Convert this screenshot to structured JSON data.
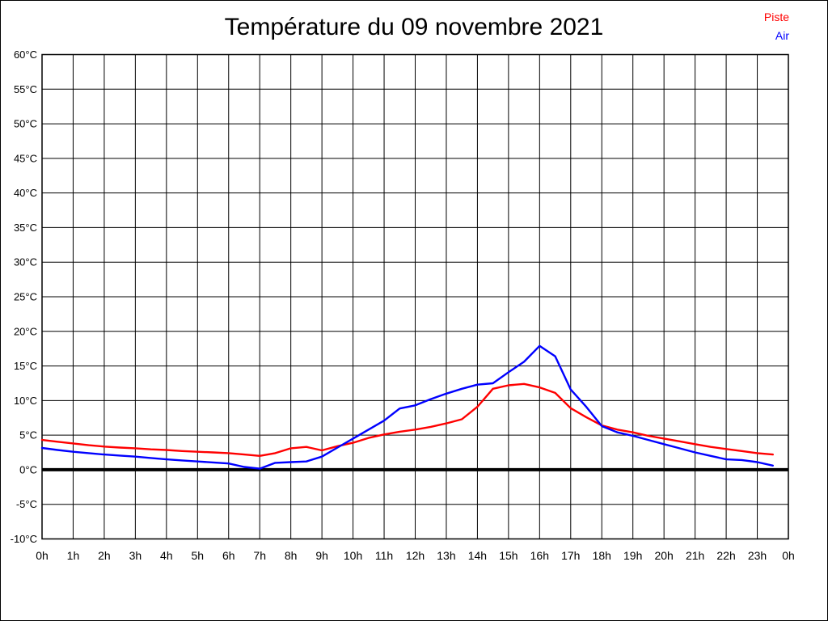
{
  "header": {
    "title": "Température du 09 novembre 2021"
  },
  "legend": {
    "items": [
      {
        "label": "Piste",
        "color": "#ff0000"
      },
      {
        "label": "Air",
        "color": "#0000ff"
      }
    ]
  },
  "chart_data": {
    "type": "line",
    "title": "Température du 09 novembre 2021",
    "xlabel": "",
    "ylabel": "",
    "x_unit": "hour of day",
    "y_unit": "°C",
    "xlim": [
      0,
      24
    ],
    "ylim": [
      -10,
      60
    ],
    "grid": true,
    "grid_color": "#000000",
    "background": "#ffffff",
    "zero_line": {
      "value": 0,
      "thick": true,
      "color": "#000000"
    },
    "legend_position": "top-right",
    "x_tick_hours": [
      0,
      1,
      2,
      3,
      4,
      5,
      6,
      7,
      8,
      9,
      10,
      11,
      12,
      13,
      14,
      15,
      16,
      17,
      18,
      19,
      20,
      21,
      22,
      23,
      24
    ],
    "x_tick_labels": [
      "0h",
      "1h",
      "2h",
      "3h",
      "4h",
      "5h",
      "6h",
      "7h",
      "8h",
      "9h",
      "10h",
      "11h",
      "12h",
      "13h",
      "14h",
      "15h",
      "16h",
      "17h",
      "18h",
      "19h",
      "20h",
      "21h",
      "22h",
      "23h",
      "0h"
    ],
    "y_tick_values": [
      60,
      55,
      50,
      45,
      40,
      35,
      30,
      25,
      20,
      15,
      10,
      5,
      0,
      -5,
      -10
    ],
    "y_tick_labels": [
      "60°C",
      "55°C",
      "50°C",
      "45°C",
      "40°C",
      "35°C",
      "30°C",
      "25°C",
      "20°C",
      "15°C",
      "10°C",
      "5°C",
      "0°C",
      "-5°C",
      "-10°C"
    ],
    "x": [
      0,
      0.5,
      1,
      1.5,
      2,
      2.5,
      3,
      3.5,
      4,
      4.5,
      5,
      5.5,
      6,
      6.5,
      7,
      7.5,
      8,
      8.5,
      9,
      9.5,
      10,
      10.5,
      11,
      11.5,
      12,
      12.5,
      13,
      13.5,
      14,
      14.5,
      15,
      15.5,
      16,
      16.5,
      17,
      17.5,
      18,
      18.5,
      19,
      19.5,
      20,
      20.5,
      21,
      21.5,
      22,
      22.5,
      23,
      23.5
    ],
    "series": [
      {
        "name": "Piste",
        "color": "#ff0000",
        "values": [
          4.3,
          4.05,
          3.8,
          3.55,
          3.35,
          3.2,
          3.1,
          2.95,
          2.85,
          2.7,
          2.6,
          2.5,
          2.4,
          2.2,
          2.0,
          2.4,
          3.1,
          3.3,
          2.8,
          3.4,
          3.9,
          4.6,
          5.1,
          5.5,
          5.8,
          6.2,
          6.7,
          7.3,
          9.1,
          11.7,
          12.2,
          12.4,
          11.9,
          11.1,
          8.9,
          7.6,
          6.4,
          5.8,
          5.4,
          4.9,
          4.5,
          4.1,
          3.7,
          3.3,
          3.0,
          2.7,
          2.4,
          2.2
        ]
      },
      {
        "name": "Air",
        "color": "#0000ff",
        "values": [
          3.15,
          2.85,
          2.6,
          2.4,
          2.2,
          2.05,
          1.9,
          1.7,
          1.5,
          1.35,
          1.2,
          1.05,
          0.9,
          0.4,
          0.15,
          1.0,
          1.1,
          1.2,
          1.9,
          3.2,
          4.5,
          5.8,
          7.1,
          8.85,
          9.3,
          10.2,
          11.0,
          11.7,
          12.3,
          12.5,
          14.1,
          15.6,
          17.9,
          16.4,
          11.6,
          9.1,
          6.3,
          5.4,
          4.9,
          4.3,
          3.7,
          3.1,
          2.5,
          2.0,
          1.5,
          1.4,
          1.1,
          0.6
        ]
      }
    ]
  }
}
